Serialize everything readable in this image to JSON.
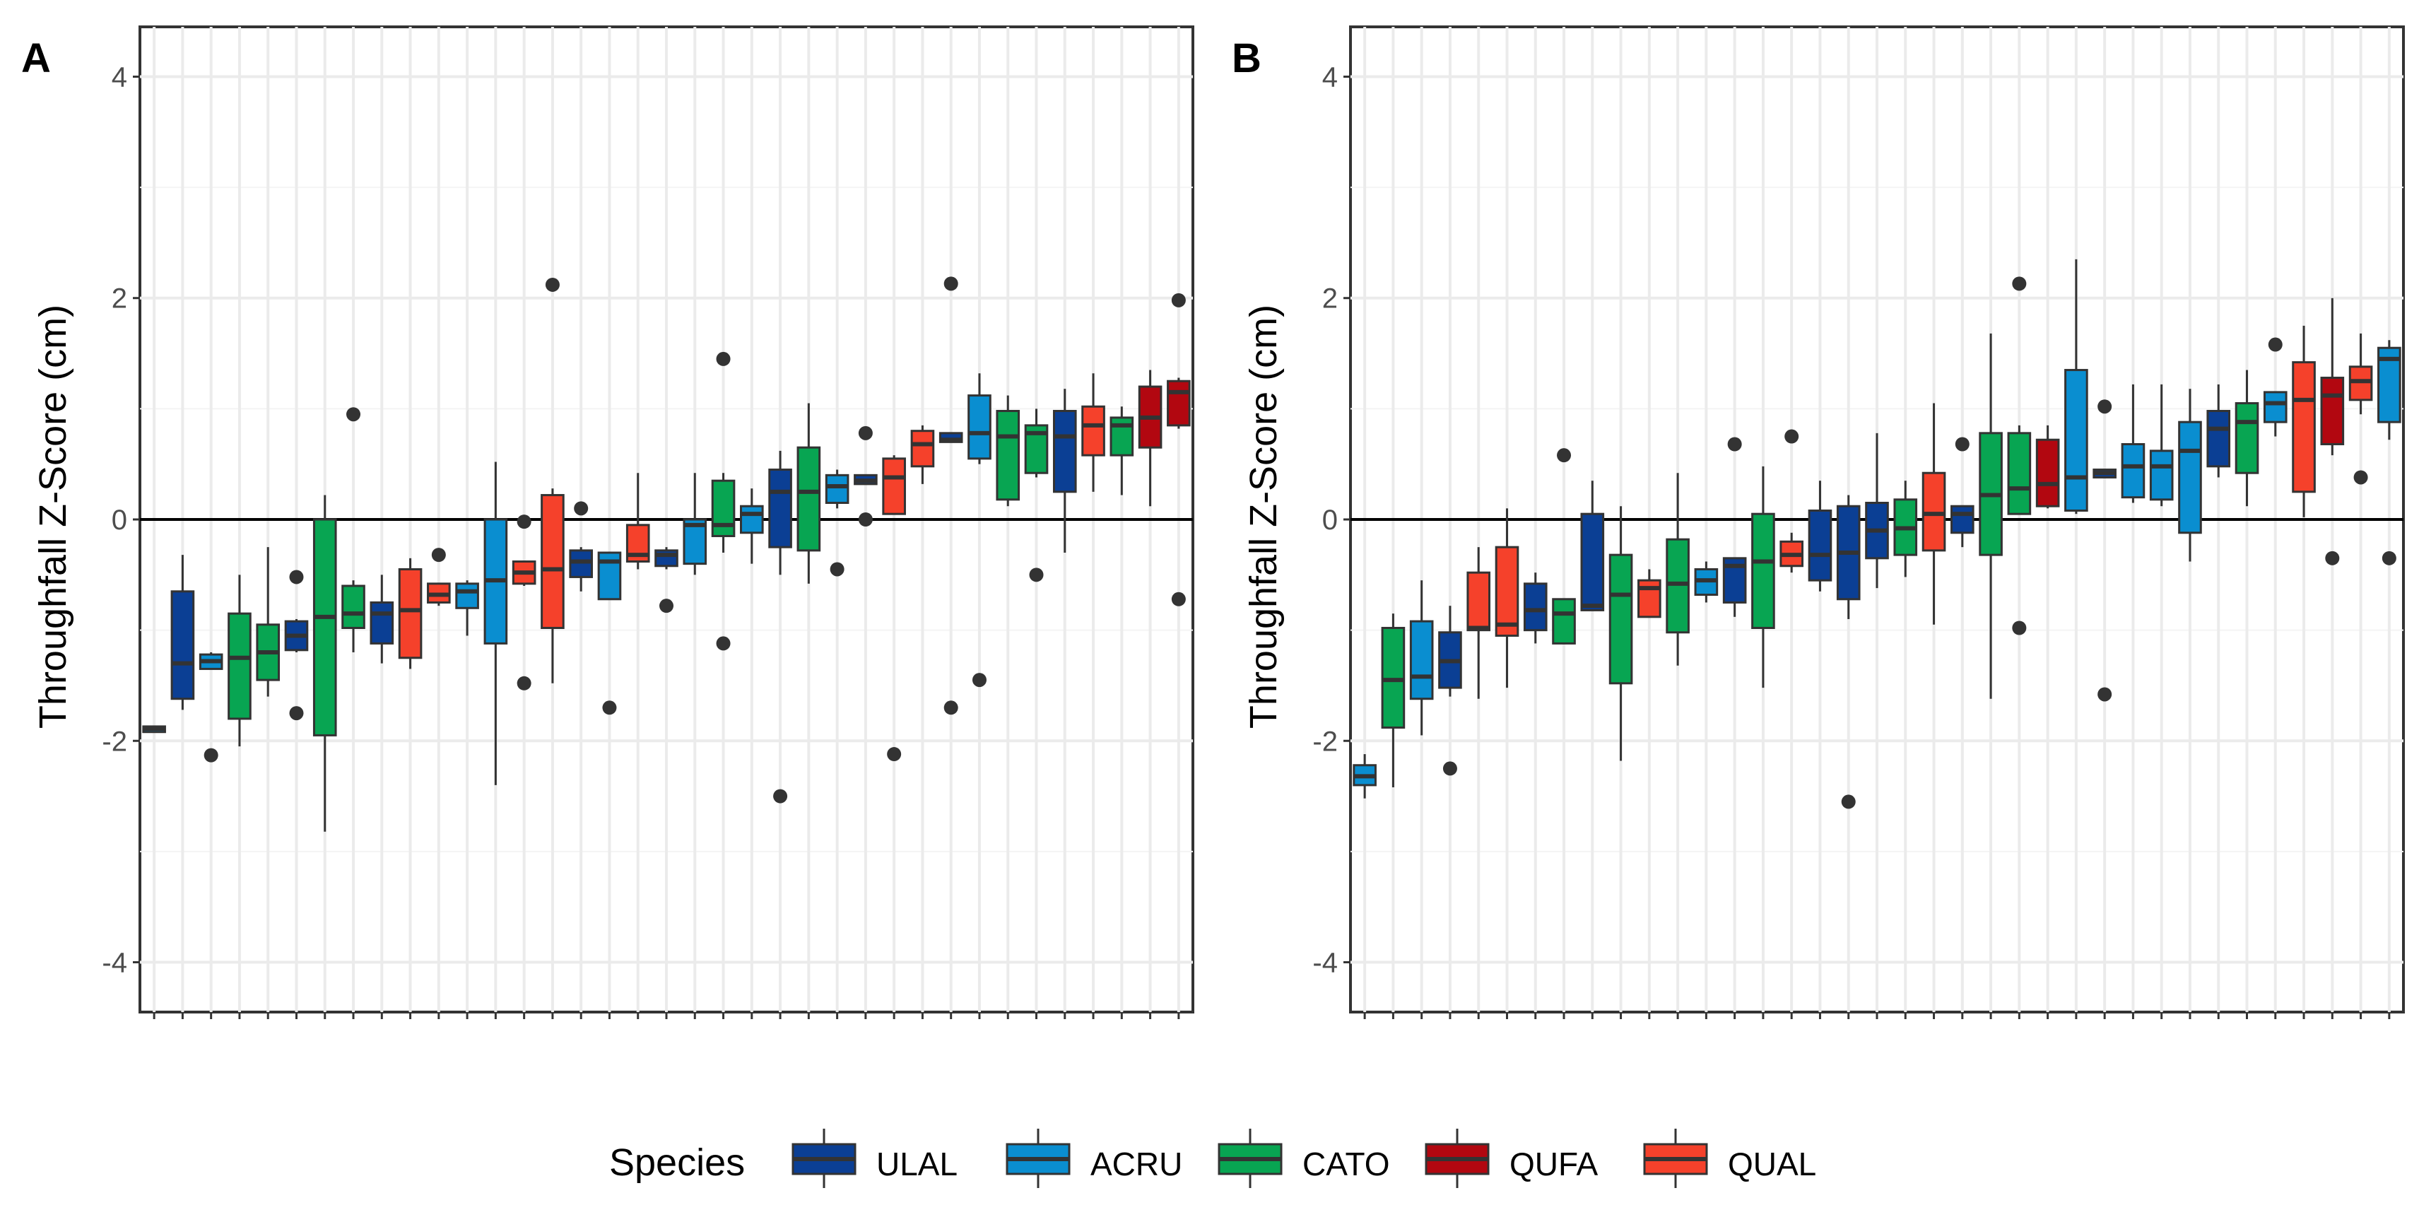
{
  "legend": {
    "title": "Species",
    "items": [
      {
        "code": "ULAL",
        "color": "#0B3F94"
      },
      {
        "code": "ACRU",
        "color": "#0A8ED0"
      },
      {
        "code": "CATO",
        "color": "#08A552"
      },
      {
        "code": "QUFA",
        "color": "#B20710"
      },
      {
        "code": "QUAL",
        "color": "#F5412B"
      }
    ]
  },
  "chart_data": [
    {
      "type": "boxplot",
      "panel": "A",
      "ylabel": "Throughfall Z-Score (cm)",
      "xlabel": "",
      "ylim": [
        -4.45,
        4.45
      ],
      "yticks": [
        -4,
        -2,
        0,
        2,
        4
      ],
      "grid": true,
      "reference_line": 0,
      "boxes": [
        {
          "species": "ACRU",
          "q1": -1.92,
          "median": -1.89,
          "q3": -1.87,
          "low": -1.92,
          "high": -1.87,
          "outliers": []
        },
        {
          "species": "ULAL",
          "q1": -1.62,
          "median": -1.3,
          "q3": -0.65,
          "low": -1.72,
          "high": -0.32,
          "outliers": []
        },
        {
          "species": "ACRU",
          "q1": -1.35,
          "median": -1.28,
          "q3": -1.22,
          "low": -1.35,
          "high": -1.2,
          "outliers": [
            -2.13
          ]
        },
        {
          "species": "CATO",
          "q1": -1.8,
          "median": -1.25,
          "q3": -0.85,
          "low": -2.05,
          "high": -0.5,
          "outliers": []
        },
        {
          "species": "CATO",
          "q1": -1.45,
          "median": -1.2,
          "q3": -0.95,
          "low": -1.6,
          "high": -0.25,
          "outliers": []
        },
        {
          "species": "ULAL",
          "q1": -1.18,
          "median": -1.05,
          "q3": -0.92,
          "low": -1.2,
          "high": -0.9,
          "outliers": [
            -0.52,
            -1.75
          ]
        },
        {
          "species": "CATO",
          "q1": -1.95,
          "median": -0.88,
          "q3": 0,
          "low": -2.82,
          "high": 0.22,
          "outliers": []
        },
        {
          "species": "CATO",
          "q1": -0.98,
          "median": -0.85,
          "q3": -0.6,
          "low": -1.2,
          "high": -0.55,
          "outliers": [
            0.95
          ]
        },
        {
          "species": "ULAL",
          "q1": -1.12,
          "median": -0.85,
          "q3": -0.75,
          "low": -1.3,
          "high": -0.5,
          "outliers": []
        },
        {
          "species": "QUAL",
          "q1": -1.25,
          "median": -0.82,
          "q3": -0.45,
          "low": -1.35,
          "high": -0.35,
          "outliers": []
        },
        {
          "species": "QUAL",
          "q1": -0.75,
          "median": -0.68,
          "q3": -0.58,
          "low": -0.78,
          "high": -0.58,
          "outliers": [
            -0.32
          ]
        },
        {
          "species": "ACRU",
          "q1": -0.8,
          "median": -0.65,
          "q3": -0.58,
          "low": -1.05,
          "high": -0.55,
          "outliers": []
        },
        {
          "species": "ACRU",
          "q1": -1.12,
          "median": -0.55,
          "q3": 0,
          "low": -2.4,
          "high": 0.52,
          "outliers": []
        },
        {
          "species": "QUAL",
          "q1": -0.58,
          "median": -0.48,
          "q3": -0.38,
          "low": -0.6,
          "high": -0.38,
          "outliers": [
            -0.02,
            -1.48
          ]
        },
        {
          "species": "QUAL",
          "q1": -0.98,
          "median": -0.45,
          "q3": 0.22,
          "low": -1.48,
          "high": 0.28,
          "outliers": [
            2.12
          ]
        },
        {
          "species": "ULAL",
          "q1": -0.52,
          "median": -0.38,
          "q3": -0.28,
          "low": -0.65,
          "high": -0.25,
          "outliers": [
            0.1
          ]
        },
        {
          "species": "ACRU",
          "q1": -0.72,
          "median": -0.38,
          "q3": -0.3,
          "low": -0.72,
          "high": -0.3,
          "outliers": [
            -1.7
          ]
        },
        {
          "species": "QUAL",
          "q1": -0.38,
          "median": -0.32,
          "q3": -0.05,
          "low": -0.45,
          "high": 0.42,
          "outliers": []
        },
        {
          "species": "ULAL",
          "q1": -0.42,
          "median": -0.32,
          "q3": -0.28,
          "low": -0.45,
          "high": -0.25,
          "outliers": [
            -0.78
          ]
        },
        {
          "species": "ACRU",
          "q1": -0.4,
          "median": -0.05,
          "q3": 0,
          "low": -0.5,
          "high": 0.42,
          "outliers": []
        },
        {
          "species": "CATO",
          "q1": -0.15,
          "median": -0.05,
          "q3": 0.35,
          "low": -0.3,
          "high": 0.42,
          "outliers": [
            1.45,
            -1.12
          ]
        },
        {
          "species": "ACRU",
          "q1": -0.12,
          "median": 0.05,
          "q3": 0.12,
          "low": -0.4,
          "high": 0.28,
          "outliers": []
        },
        {
          "species": "ULAL",
          "q1": -0.25,
          "median": 0.25,
          "q3": 0.45,
          "low": -0.5,
          "high": 0.62,
          "outliers": [
            -2.5
          ]
        },
        {
          "species": "CATO",
          "q1": -0.28,
          "median": 0.25,
          "q3": 0.65,
          "low": -0.58,
          "high": 1.05,
          "outliers": []
        },
        {
          "species": "ACRU",
          "q1": 0.15,
          "median": 0.3,
          "q3": 0.4,
          "low": 0.1,
          "high": 0.45,
          "outliers": [
            -0.45
          ]
        },
        {
          "species": "ULAL",
          "q1": 0.32,
          "median": 0.35,
          "q3": 0.4,
          "low": 0.32,
          "high": 0.4,
          "outliers": [
            0.78,
            0
          ]
        },
        {
          "species": "QUAL",
          "q1": 0.05,
          "median": 0.38,
          "q3": 0.55,
          "low": 0.05,
          "high": 0.58,
          "outliers": [
            -2.12
          ]
        },
        {
          "species": "QUAL",
          "q1": 0.48,
          "median": 0.68,
          "q3": 0.8,
          "low": 0.32,
          "high": 0.85,
          "outliers": []
        },
        {
          "species": "ULAL",
          "q1": 0.7,
          "median": 0.72,
          "q3": 0.78,
          "low": 0.7,
          "high": 0.78,
          "outliers": [
            2.13,
            -1.7
          ]
        },
        {
          "species": "ACRU",
          "q1": 0.55,
          "median": 0.78,
          "q3": 1.12,
          "low": 0.5,
          "high": 1.32,
          "outliers": [
            -1.45
          ]
        },
        {
          "species": "CATO",
          "q1": 0.18,
          "median": 0.75,
          "q3": 0.98,
          "low": 0.12,
          "high": 1.12,
          "outliers": []
        },
        {
          "species": "CATO",
          "q1": 0.42,
          "median": 0.78,
          "q3": 0.85,
          "low": 0.38,
          "high": 1.0,
          "outliers": [
            -0.5
          ]
        },
        {
          "species": "ULAL",
          "q1": 0.25,
          "median": 0.75,
          "q3": 0.98,
          "low": -0.3,
          "high": 1.18,
          "outliers": []
        },
        {
          "species": "QUAL",
          "q1": 0.58,
          "median": 0.85,
          "q3": 1.02,
          "low": 0.25,
          "high": 1.32,
          "outliers": []
        },
        {
          "species": "CATO",
          "q1": 0.58,
          "median": 0.85,
          "q3": 0.92,
          "low": 0.22,
          "high": 1.02,
          "outliers": []
        },
        {
          "species": "QUFA",
          "q1": 0.65,
          "median": 0.92,
          "q3": 1.2,
          "low": 0.12,
          "high": 1.35,
          "outliers": []
        },
        {
          "species": "QUFA",
          "q1": 0.85,
          "median": 1.15,
          "q3": 1.25,
          "low": 0.82,
          "high": 1.28,
          "outliers": [
            1.98,
            -0.72
          ]
        }
      ]
    },
    {
      "type": "boxplot",
      "panel": "B",
      "ylabel": "Throughfall Z-Score (cm)",
      "xlabel": "",
      "ylim": [
        -4.45,
        4.45
      ],
      "yticks": [
        -4,
        -2,
        0,
        2,
        4
      ],
      "grid": true,
      "reference_line": 0,
      "boxes": [
        {
          "species": "ACRU",
          "q1": -2.4,
          "median": -2.32,
          "q3": -2.22,
          "low": -2.52,
          "high": -2.12,
          "outliers": []
        },
        {
          "species": "CATO",
          "q1": -1.88,
          "median": -1.45,
          "q3": -0.98,
          "low": -2.42,
          "high": -0.85,
          "outliers": []
        },
        {
          "species": "ACRU",
          "q1": -1.62,
          "median": -1.42,
          "q3": -0.92,
          "low": -1.95,
          "high": -0.55,
          "outliers": []
        },
        {
          "species": "ULAL",
          "q1": -1.52,
          "median": -1.28,
          "q3": -1.02,
          "low": -1.6,
          "high": -0.78,
          "outliers": [
            -2.25
          ]
        },
        {
          "species": "QUAL",
          "q1": -1.0,
          "median": -0.98,
          "q3": -0.48,
          "low": -1.62,
          "high": -0.25,
          "outliers": []
        },
        {
          "species": "QUAL",
          "q1": -1.05,
          "median": -0.95,
          "q3": -0.25,
          "low": -1.52,
          "high": 0.1,
          "outliers": []
        },
        {
          "species": "ULAL",
          "q1": -1.0,
          "median": -0.82,
          "q3": -0.58,
          "low": -1.12,
          "high": -0.48,
          "outliers": []
        },
        {
          "species": "CATO",
          "q1": -1.12,
          "median": -0.85,
          "q3": -0.72,
          "low": -1.12,
          "high": -0.72,
          "outliers": [
            0.58
          ]
        },
        {
          "species": "ULAL",
          "q1": -0.82,
          "median": -0.78,
          "q3": 0.05,
          "low": -0.82,
          "high": 0.35,
          "outliers": []
        },
        {
          "species": "CATO",
          "q1": -1.48,
          "median": -0.68,
          "q3": -0.32,
          "low": -2.18,
          "high": 0.12,
          "outliers": []
        },
        {
          "species": "QUAL",
          "q1": -0.88,
          "median": -0.62,
          "q3": -0.55,
          "low": -0.88,
          "high": -0.45,
          "outliers": []
        },
        {
          "species": "CATO",
          "q1": -1.02,
          "median": -0.58,
          "q3": -0.18,
          "low": -1.32,
          "high": 0.42,
          "outliers": []
        },
        {
          "species": "ACRU",
          "q1": -0.68,
          "median": -0.55,
          "q3": -0.45,
          "low": -0.75,
          "high": -0.38,
          "outliers": []
        },
        {
          "species": "ULAL",
          "q1": -0.75,
          "median": -0.42,
          "q3": -0.35,
          "low": -0.88,
          "high": -0.35,
          "outliers": [
            0.68
          ]
        },
        {
          "species": "CATO",
          "q1": -0.98,
          "median": -0.38,
          "q3": 0.05,
          "low": -1.52,
          "high": 0.48,
          "outliers": []
        },
        {
          "species": "QUAL",
          "q1": -0.42,
          "median": -0.32,
          "q3": -0.2,
          "low": -0.48,
          "high": -0.12,
          "outliers": [
            0.75
          ]
        },
        {
          "species": "ULAL",
          "q1": -0.55,
          "median": -0.32,
          "q3": 0.08,
          "low": -0.65,
          "high": 0.35,
          "outliers": []
        },
        {
          "species": "ULAL",
          "q1": -0.72,
          "median": -0.3,
          "q3": 0.12,
          "low": -0.9,
          "high": 0.22,
          "outliers": [
            -2.55
          ]
        },
        {
          "species": "ULAL",
          "q1": -0.35,
          "median": -0.1,
          "q3": 0.15,
          "low": -0.62,
          "high": 0.78,
          "outliers": []
        },
        {
          "species": "CATO",
          "q1": -0.32,
          "median": -0.08,
          "q3": 0.18,
          "low": -0.52,
          "high": 0.35,
          "outliers": []
        },
        {
          "species": "QUAL",
          "q1": -0.28,
          "median": 0.05,
          "q3": 0.42,
          "low": -0.95,
          "high": 1.05,
          "outliers": []
        },
        {
          "species": "ULAL",
          "q1": -0.12,
          "median": 0.05,
          "q3": 0.12,
          "low": -0.25,
          "high": 0.12,
          "outliers": [
            0.68
          ]
        },
        {
          "species": "CATO",
          "q1": -0.32,
          "median": 0.22,
          "q3": 0.78,
          "low": -1.62,
          "high": 1.68,
          "outliers": []
        },
        {
          "species": "CATO",
          "q1": 0.05,
          "median": 0.28,
          "q3": 0.78,
          "low": 0.05,
          "high": 0.85,
          "outliers": [
            2.13,
            -0.98
          ]
        },
        {
          "species": "QUFA",
          "q1": 0.12,
          "median": 0.32,
          "q3": 0.72,
          "low": 0.1,
          "high": 0.85,
          "outliers": []
        },
        {
          "species": "ACRU",
          "q1": 0.08,
          "median": 0.38,
          "q3": 1.35,
          "low": 0.05,
          "high": 2.35,
          "outliers": []
        },
        {
          "species": "ULAL",
          "q1": 0.38,
          "median": 0.42,
          "q3": 0.45,
          "low": 0.38,
          "high": 0.45,
          "outliers": [
            1.02,
            -1.58
          ]
        },
        {
          "species": "ACRU",
          "q1": 0.2,
          "median": 0.48,
          "q3": 0.68,
          "low": 0.15,
          "high": 1.22,
          "outliers": []
        },
        {
          "species": "ACRU",
          "q1": 0.18,
          "median": 0.48,
          "q3": 0.62,
          "low": 0.12,
          "high": 1.22,
          "outliers": []
        },
        {
          "species": "ACRU",
          "q1": -0.12,
          "median": 0.62,
          "q3": 0.88,
          "low": -0.38,
          "high": 1.18,
          "outliers": []
        },
        {
          "species": "ULAL",
          "q1": 0.48,
          "median": 0.82,
          "q3": 0.98,
          "low": 0.38,
          "high": 1.22,
          "outliers": []
        },
        {
          "species": "CATO",
          "q1": 0.42,
          "median": 0.88,
          "q3": 1.05,
          "low": 0.12,
          "high": 1.35,
          "outliers": []
        },
        {
          "species": "ACRU",
          "q1": 0.88,
          "median": 1.05,
          "q3": 1.15,
          "low": 0.75,
          "high": 1.15,
          "outliers": [
            1.58
          ]
        },
        {
          "species": "QUAL",
          "q1": 0.25,
          "median": 1.08,
          "q3": 1.42,
          "low": 0.02,
          "high": 1.75,
          "outliers": []
        },
        {
          "species": "QUFA",
          "q1": 0.68,
          "median": 1.12,
          "q3": 1.28,
          "low": 0.58,
          "high": 2.0,
          "outliers": [
            -0.35
          ]
        },
        {
          "species": "QUAL",
          "q1": 1.08,
          "median": 1.25,
          "q3": 1.38,
          "low": 0.95,
          "high": 1.68,
          "outliers": [
            0.38
          ]
        },
        {
          "species": "ACRU",
          "q1": 0.88,
          "median": 1.45,
          "q3": 1.55,
          "low": 0.72,
          "high": 1.62,
          "outliers": [
            -0.35
          ]
        }
      ]
    }
  ]
}
